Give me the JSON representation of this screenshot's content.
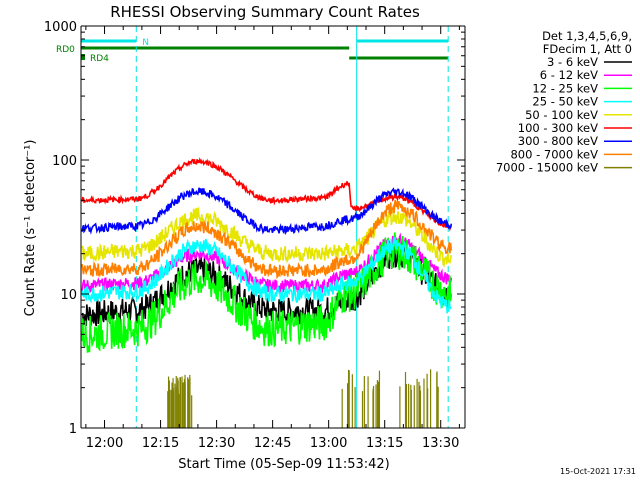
{
  "chart_data": {
    "type": "line",
    "title": "RHESSI Observing Summary Count Rates",
    "xlabel": "Start Time (05-Sep-09 11:53:42)",
    "ylabel": "Count Rate (s⁻¹ detector⁻¹)",
    "yscale": "log",
    "ylim": [
      1,
      1000
    ],
    "xlim_minutes": [
      -6.3,
      96.5
    ],
    "x_ticks": [
      {
        "label": "12:00",
        "minute": 0
      },
      {
        "label": "12:15",
        "minute": 15
      },
      {
        "label": "12:30",
        "minute": 30
      },
      {
        "label": "12:45",
        "minute": 45
      },
      {
        "label": "13:00",
        "minute": 60
      },
      {
        "label": "13:15",
        "minute": 75
      },
      {
        "label": "13:30",
        "minute": 90
      }
    ],
    "y_ticks": [
      {
        "label": "1",
        "value": 1
      },
      {
        "label": "10",
        "value": 10
      },
      {
        "label": "100",
        "value": 100
      },
      {
        "label": "1000",
        "value": 1000
      }
    ],
    "legend_header": [
      "Det 1,3,4,5,6,9,",
      "FDecim 1, Att 0"
    ],
    "legend_position": "right",
    "timestamp": "15-Oct-2021 17:31",
    "flags": {
      "N_label": "N",
      "RD0_label": "RD0",
      "RD4_label": "RD4",
      "colors": {
        "night": "#00e5e5",
        "decim": "#008000"
      },
      "night_intervals": [
        [
          -6.3,
          8.5
        ],
        [
          67.5,
          92
        ]
      ],
      "rd0_interval": [
        -6.3,
        65.5
      ],
      "rd4_interval": [
        65.5,
        92
      ],
      "vertical_markers": [
        {
          "minute": -6.3,
          "style": "solid"
        },
        {
          "minute": 8.5,
          "style": "dashed"
        },
        {
          "minute": 67.5,
          "style": "solid"
        },
        {
          "minute": 92,
          "style": "dashed"
        }
      ]
    },
    "series": [
      {
        "name": "3 - 6 keV",
        "color": "#000000",
        "x": [
          -6,
          8,
          25,
          45,
          58,
          65,
          78,
          93
        ],
        "y": [
          7,
          7.5,
          15,
          7.5,
          7.5,
          9,
          20,
          10
        ],
        "noise": 0.1
      },
      {
        "name": "6 - 12 keV",
        "color": "#ff00ff",
        "x": [
          -6,
          8,
          25,
          45,
          58,
          65,
          78,
          93
        ],
        "y": [
          11.5,
          12,
          20,
          11.5,
          11.5,
          14,
          25,
          13
        ],
        "noise": 0.05
      },
      {
        "name": "12 - 25 keV",
        "color": "#00ff00",
        "x": [
          -6,
          8,
          25,
          45,
          58,
          65,
          78,
          93
        ],
        "y": [
          5,
          5.5,
          13,
          5.5,
          6,
          10,
          21,
          10
        ],
        "noise": 0.14
      },
      {
        "name": "25 - 50 keV",
        "color": "#00ffff",
        "x": [
          -6,
          8,
          25,
          45,
          58,
          65,
          78,
          93
        ],
        "y": [
          10,
          10.5,
          23,
          10,
          10,
          12,
          23,
          8
        ],
        "noise": 0.06
      },
      {
        "name": "50 - 100 keV",
        "color": "#e5e500",
        "x": [
          -6,
          8,
          25,
          45,
          58,
          65,
          78,
          93
        ],
        "y": [
          20,
          21,
          38,
          20,
          20,
          21,
          38,
          18
        ],
        "noise": 0.06
      },
      {
        "name": "100 - 300 keV",
        "color": "#ff0000",
        "x": [
          -6,
          8,
          25,
          45,
          58,
          65.5,
          66,
          78,
          93
        ],
        "y": [
          50,
          51,
          98,
          50,
          52,
          67,
          43,
          53,
          32
        ],
        "noise": 0.02
      },
      {
        "name": "300 - 800 keV",
        "color": "#0000ff",
        "x": [
          -6,
          8,
          25,
          45,
          58,
          65,
          78,
          93
        ],
        "y": [
          31,
          32,
          58,
          30,
          32,
          36,
          58,
          33
        ],
        "noise": 0.03
      },
      {
        "name": "800 - 7000 keV",
        "color": "#ff8000",
        "x": [
          -6,
          8,
          25,
          45,
          58,
          65,
          78,
          93
        ],
        "y": [
          15,
          15.5,
          32,
          15,
          15,
          18,
          45,
          22
        ],
        "noise": 0.05
      },
      {
        "name": "7000 - 15000 keV",
        "color": "#808000",
        "type": "spikes",
        "x": [
          18.5,
          21.5,
          68.5,
          84
        ],
        "y": [
          2,
          2,
          2.2,
          2.2
        ],
        "noise": 0
      }
    ]
  }
}
